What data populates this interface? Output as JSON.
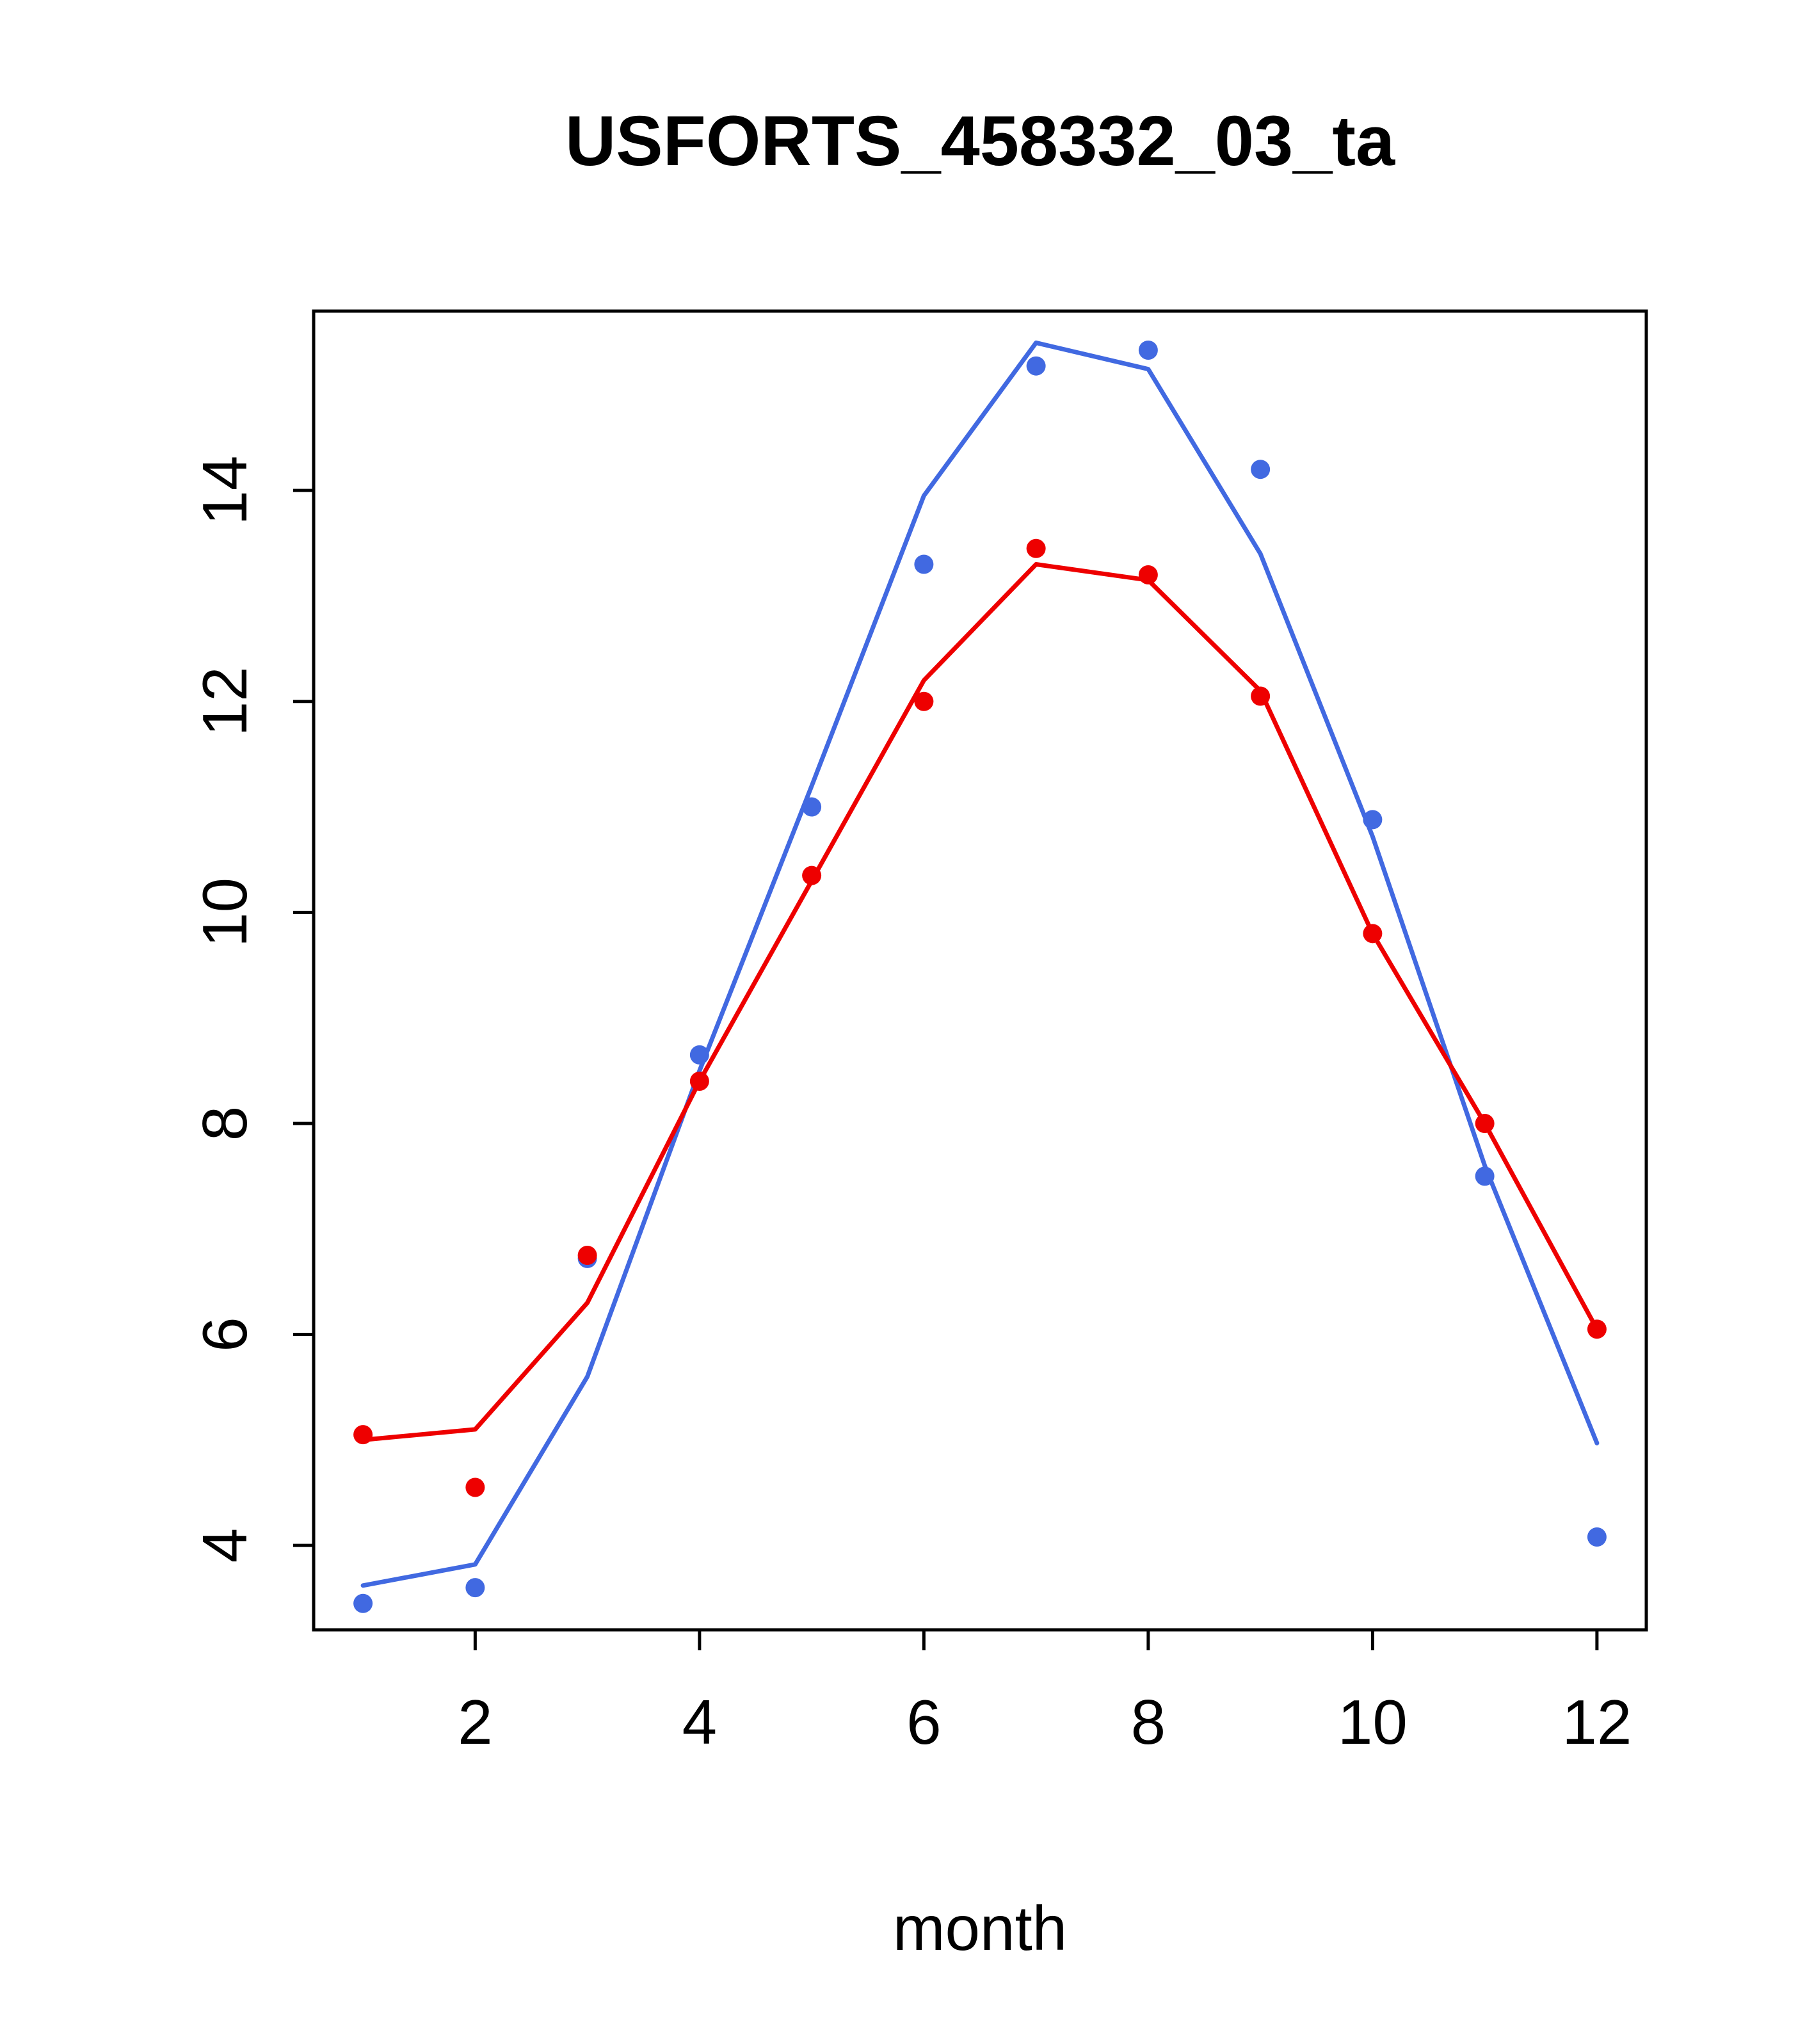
{
  "page": {
    "background": "#ffffff"
  },
  "chart_data": {
    "type": "line",
    "title": "USFORTS_458332_03_ta",
    "xlabel": "month",
    "ylabel": "",
    "x": [
      1,
      2,
      3,
      4,
      5,
      6,
      7,
      8,
      9,
      10,
      11,
      12
    ],
    "xticks": [
      2,
      4,
      6,
      8,
      10,
      12
    ],
    "yticks": [
      4,
      6,
      8,
      10,
      12,
      14
    ],
    "xlim": [
      0.56,
      12.44
    ],
    "ylim": [
      3.2,
      15.7
    ],
    "grid": false,
    "legend": null,
    "series": [
      {
        "name": "fitted-blue-line",
        "kind": "line",
        "color": "#4169E1",
        "values": [
          3.62,
          3.82,
          5.6,
          8.5,
          11.2,
          13.95,
          15.4,
          15.15,
          13.4,
          10.72,
          7.6,
          4.97
        ]
      },
      {
        "name": "fitted-red-line",
        "kind": "line",
        "color": "#EE0000",
        "values": [
          5.0,
          5.1,
          6.3,
          8.4,
          10.3,
          12.2,
          13.3,
          13.15,
          12.1,
          9.8,
          8.0,
          6.05
        ]
      },
      {
        "name": "observed-blue-points",
        "kind": "scatter",
        "color": "#4169E1",
        "values": [
          3.45,
          3.6,
          6.72,
          8.65,
          11.0,
          13.3,
          15.18,
          15.33,
          14.2,
          10.88,
          7.5,
          4.08
        ]
      },
      {
        "name": "observed-red-points",
        "kind": "scatter",
        "color": "#EE0000",
        "values": [
          5.05,
          4.55,
          6.75,
          8.4,
          10.35,
          12.0,
          13.45,
          13.2,
          12.05,
          9.8,
          8.0,
          6.05
        ]
      }
    ]
  }
}
